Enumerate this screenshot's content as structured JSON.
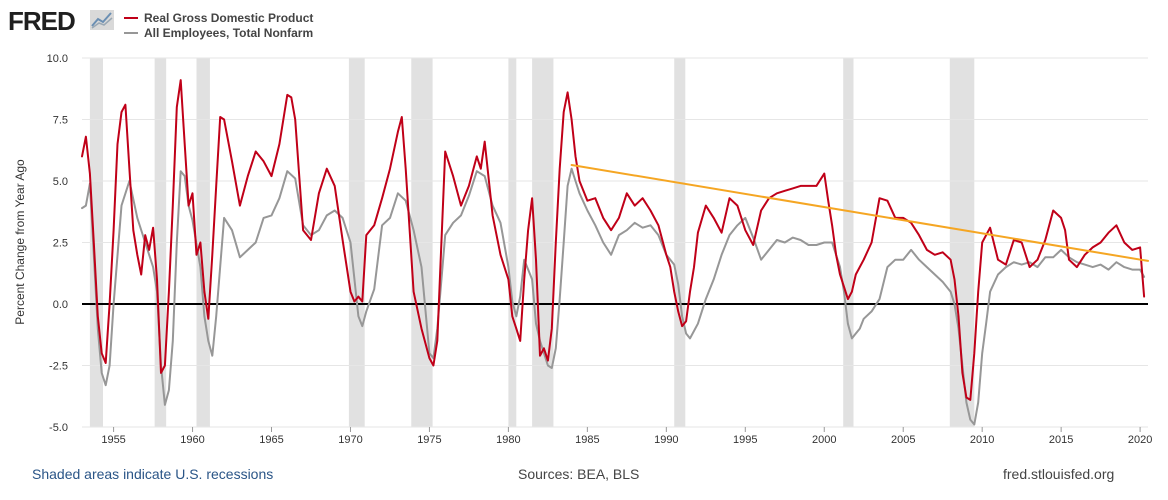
{
  "header": {
    "logo_text": "FRED",
    "logo_icon": "line-chart-icon"
  },
  "footer": {
    "recession_note": "Shaded areas indicate U.S. recessions",
    "sources": "Sources: BEA, BLS",
    "site": "fred.stlouisfed.org"
  },
  "colors": {
    "gdp": "#c00018",
    "employees": "#979797",
    "trend": "#f5a623",
    "recession": "#e1e1e1",
    "zero_line": "#000000"
  },
  "chart_data": {
    "type": "line",
    "title": "",
    "xlabel": "",
    "ylabel": "Percent Change from Year Ago",
    "xlim": [
      1953,
      2020.5
    ],
    "ylim": [
      -5.0,
      10.0
    ],
    "y_ticks": [
      "-5.0",
      "-2.5",
      "0.0",
      "2.5",
      "5.0",
      "7.5",
      "10.0"
    ],
    "x_ticks": [
      "1955",
      "1960",
      "1965",
      "1970",
      "1975",
      "1980",
      "1985",
      "1990",
      "1995",
      "2000",
      "2005",
      "2010",
      "2015",
      "2020"
    ],
    "grid": "horizontal",
    "legend_position": "top-left",
    "recessions": [
      [
        1953.5,
        1954.33
      ],
      [
        1957.6,
        1958.33
      ],
      [
        1960.25,
        1961.1
      ],
      [
        1969.9,
        1970.9
      ],
      [
        1973.85,
        1975.2
      ],
      [
        1980.0,
        1980.5
      ],
      [
        1981.5,
        1982.85
      ],
      [
        1990.5,
        1991.2
      ],
      [
        2001.2,
        2001.85
      ],
      [
        2007.95,
        2009.5
      ]
    ],
    "series": [
      {
        "name": "Real Gross Domestic Product",
        "x": [
          1953.0,
          1953.25,
          1953.5,
          1953.75,
          1954.0,
          1954.25,
          1954.5,
          1954.75,
          1955.0,
          1955.25,
          1955.5,
          1955.75,
          1956.0,
          1956.25,
          1956.5,
          1956.75,
          1957.0,
          1957.25,
          1957.5,
          1957.75,
          1958.0,
          1958.25,
          1958.5,
          1958.75,
          1959.0,
          1959.25,
          1959.5,
          1959.75,
          1960.0,
          1960.25,
          1960.5,
          1960.75,
          1961.0,
          1961.25,
          1961.5,
          1961.75,
          1962.0,
          1962.5,
          1963.0,
          1963.5,
          1964.0,
          1964.5,
          1965.0,
          1965.5,
          1966.0,
          1966.25,
          1966.5,
          1967.0,
          1967.5,
          1968.0,
          1968.5,
          1969.0,
          1969.5,
          1970.0,
          1970.25,
          1970.5,
          1970.75,
          1971.0,
          1971.5,
          1972.0,
          1972.5,
          1973.0,
          1973.25,
          1973.5,
          1974.0,
          1974.5,
          1975.0,
          1975.25,
          1975.5,
          1976.0,
          1976.5,
          1977.0,
          1977.5,
          1978.0,
          1978.25,
          1978.5,
          1979.0,
          1979.5,
          1980.0,
          1980.25,
          1980.5,
          1980.75,
          1981.0,
          1981.25,
          1981.5,
          1981.75,
          1982.0,
          1982.25,
          1982.5,
          1982.75,
          1983.0,
          1983.25,
          1983.5,
          1983.75,
          1984.0,
          1984.25,
          1984.5,
          1985.0,
          1985.5,
          1986.0,
          1986.5,
          1987.0,
          1987.5,
          1988.0,
          1988.5,
          1989.0,
          1989.5,
          1990.0,
          1990.25,
          1990.5,
          1990.75,
          1991.0,
          1991.25,
          1991.5,
          1991.75,
          1992.0,
          1992.5,
          1993.0,
          1993.5,
          1994.0,
          1994.5,
          1995.0,
          1995.5,
          1996.0,
          1996.5,
          1997.0,
          1997.5,
          1998.0,
          1998.5,
          1999.0,
          1999.5,
          2000.0,
          2000.25,
          2000.5,
          2000.75,
          2001.0,
          2001.25,
          2001.5,
          2001.75,
          2002.0,
          2002.5,
          2003.0,
          2003.5,
          2004.0,
          2004.5,
          2005.0,
          2005.5,
          2006.0,
          2006.5,
          2007.0,
          2007.5,
          2008.0,
          2008.25,
          2008.5,
          2008.75,
          2009.0,
          2009.25,
          2009.5,
          2009.75,
          2010.0,
          2010.5,
          2011.0,
          2011.5,
          2012.0,
          2012.5,
          2013.0,
          2013.5,
          2014.0,
          2014.5,
          2015.0,
          2015.25,
          2015.5,
          2016.0,
          2016.5,
          2017.0,
          2017.5,
          2018.0,
          2018.5,
          2019.0,
          2019.5,
          2020.0,
          2020.25
        ],
        "values": [
          6.0,
          6.8,
          5.3,
          2.5,
          -0.5,
          -2.0,
          -2.4,
          0.0,
          3.0,
          6.5,
          7.8,
          8.1,
          5.5,
          3.0,
          2.0,
          1.2,
          2.8,
          2.2,
          3.1,
          1.0,
          -2.8,
          -2.5,
          0.5,
          4.0,
          8.0,
          9.1,
          6.5,
          4.0,
          4.5,
          2.0,
          2.5,
          0.5,
          -0.6,
          2.0,
          4.8,
          7.6,
          7.5,
          5.8,
          4.0,
          5.2,
          6.2,
          5.8,
          5.2,
          6.5,
          8.5,
          8.4,
          7.5,
          3.0,
          2.6,
          4.5,
          5.5,
          4.8,
          2.6,
          0.5,
          0.1,
          0.3,
          0.1,
          2.8,
          3.2,
          4.3,
          5.5,
          7.0,
          7.6,
          5.5,
          0.5,
          -1.0,
          -2.2,
          -2.5,
          -1.5,
          6.2,
          5.2,
          4.0,
          4.8,
          6.0,
          5.5,
          6.6,
          3.6,
          2.0,
          1.0,
          -0.5,
          -1.0,
          -1.5,
          1.0,
          3.0,
          4.3,
          1.8,
          -2.1,
          -1.8,
          -2.3,
          -1.0,
          2.5,
          5.5,
          7.8,
          8.6,
          7.5,
          6.0,
          5.0,
          4.2,
          4.3,
          3.5,
          3.0,
          3.5,
          4.5,
          4.0,
          4.3,
          3.8,
          3.2,
          2.0,
          1.5,
          0.5,
          -0.3,
          -0.9,
          -0.7,
          0.5,
          1.5,
          2.9,
          4.0,
          3.5,
          2.9,
          4.3,
          4.0,
          3.0,
          2.4,
          3.8,
          4.3,
          4.5,
          4.6,
          4.7,
          4.8,
          4.8,
          4.8,
          5.3,
          4.2,
          3.2,
          2.0,
          1.2,
          0.7,
          0.2,
          0.5,
          1.2,
          1.8,
          2.5,
          4.3,
          4.2,
          3.5,
          3.5,
          3.3,
          2.8,
          2.2,
          2.0,
          2.1,
          1.8,
          1.0,
          -0.5,
          -2.8,
          -3.8,
          -3.9,
          -2.0,
          0.5,
          2.5,
          3.1,
          1.8,
          1.6,
          2.6,
          2.5,
          1.5,
          1.8,
          2.6,
          3.8,
          3.5,
          3.0,
          1.8,
          1.5,
          2.0,
          2.3,
          2.5,
          2.9,
          3.2,
          2.5,
          2.2,
          2.3,
          0.3
        ]
      },
      {
        "name": "All Employees, Total Nonfarm",
        "x": [
          1953.0,
          1953.25,
          1953.5,
          1953.75,
          1954.0,
          1954.25,
          1954.5,
          1954.75,
          1955.0,
          1955.5,
          1956.0,
          1956.5,
          1957.0,
          1957.5,
          1957.75,
          1958.0,
          1958.25,
          1958.5,
          1958.75,
          1959.0,
          1959.25,
          1959.5,
          1959.75,
          1960.0,
          1960.5,
          1960.75,
          1961.0,
          1961.25,
          1961.5,
          1962.0,
          1962.5,
          1963.0,
          1963.5,
          1964.0,
          1964.5,
          1965.0,
          1965.5,
          1966.0,
          1966.5,
          1967.0,
          1967.5,
          1968.0,
          1968.5,
          1969.0,
          1969.5,
          1970.0,
          1970.5,
          1970.75,
          1971.0,
          1971.5,
          1972.0,
          1972.5,
          1973.0,
          1973.5,
          1974.0,
          1974.5,
          1975.0,
          1975.25,
          1975.5,
          1976.0,
          1976.5,
          1977.0,
          1977.5,
          1978.0,
          1978.5,
          1979.0,
          1979.5,
          1980.0,
          1980.25,
          1980.5,
          1980.75,
          1981.0,
          1981.5,
          1981.75,
          1982.0,
          1982.5,
          1982.75,
          1983.0,
          1983.25,
          1983.5,
          1983.75,
          1984.0,
          1984.25,
          1984.5,
          1985.0,
          1985.5,
          1986.0,
          1986.5,
          1987.0,
          1987.5,
          1988.0,
          1988.5,
          1989.0,
          1989.5,
          1990.0,
          1990.5,
          1990.75,
          1991.0,
          1991.25,
          1991.5,
          1992.0,
          1992.5,
          1993.0,
          1993.5,
          1994.0,
          1994.5,
          1995.0,
          1995.5,
          1996.0,
          1996.5,
          1997.0,
          1997.5,
          1998.0,
          1998.5,
          1999.0,
          1999.5,
          2000.0,
          2000.5,
          2001.0,
          2001.25,
          2001.5,
          2001.75,
          2002.0,
          2002.25,
          2002.5,
          2003.0,
          2003.5,
          2004.0,
          2004.5,
          2005.0,
          2005.5,
          2006.0,
          2006.5,
          2007.0,
          2007.5,
          2008.0,
          2008.25,
          2008.5,
          2008.75,
          2009.0,
          2009.25,
          2009.5,
          2009.75,
          2010.0,
          2010.25,
          2010.5,
          2011.0,
          2011.5,
          2012.0,
          2012.5,
          2013.0,
          2013.5,
          2014.0,
          2014.5,
          2015.0,
          2015.5,
          2016.0,
          2016.5,
          2017.0,
          2017.5,
          2018.0,
          2018.5,
          2019.0,
          2019.5,
          2020.0,
          2020.25
        ],
        "values": [
          3.9,
          4.0,
          4.9,
          2.0,
          -1.0,
          -2.8,
          -3.3,
          -2.5,
          0.0,
          4.0,
          5.0,
          3.5,
          2.5,
          1.5,
          0.5,
          -2.5,
          -4.1,
          -3.5,
          -1.5,
          2.5,
          5.4,
          5.2,
          4.0,
          3.4,
          1.5,
          -0.5,
          -1.5,
          -2.1,
          -0.5,
          3.5,
          3.0,
          1.9,
          2.2,
          2.5,
          3.5,
          3.6,
          4.3,
          5.4,
          5.1,
          3.2,
          2.8,
          3.0,
          3.6,
          3.8,
          3.5,
          2.5,
          -0.5,
          -0.9,
          -0.3,
          0.6,
          3.2,
          3.5,
          4.5,
          4.2,
          3.0,
          1.5,
          -2.0,
          -2.2,
          -1.0,
          2.8,
          3.3,
          3.6,
          4.4,
          5.4,
          5.2,
          4.0,
          3.3,
          1.5,
          0.1,
          -0.5,
          0.3,
          1.8,
          1.0,
          -0.8,
          -1.5,
          -2.5,
          -2.6,
          -1.8,
          0.2,
          2.5,
          4.8,
          5.5,
          5.0,
          4.5,
          3.8,
          3.2,
          2.5,
          2.0,
          2.8,
          3.0,
          3.3,
          3.1,
          3.2,
          2.8,
          2.0,
          1.6,
          0.8,
          -0.5,
          -1.2,
          -1.4,
          -0.8,
          0.2,
          1.0,
          2.0,
          2.8,
          3.2,
          3.5,
          2.7,
          1.8,
          2.2,
          2.6,
          2.5,
          2.7,
          2.6,
          2.4,
          2.4,
          2.5,
          2.5,
          1.5,
          0.5,
          -0.8,
          -1.4,
          -1.2,
          -1.0,
          -0.6,
          -0.3,
          0.2,
          1.5,
          1.8,
          1.8,
          2.2,
          1.8,
          1.5,
          1.2,
          0.9,
          0.5,
          0.0,
          -1.0,
          -2.5,
          -4.0,
          -4.7,
          -4.9,
          -4.0,
          -2.0,
          -0.8,
          0.5,
          1.2,
          1.5,
          1.7,
          1.6,
          1.7,
          1.5,
          1.9,
          1.9,
          2.2,
          1.9,
          1.7,
          1.6,
          1.5,
          1.6,
          1.4,
          1.7,
          1.5,
          1.4,
          1.4,
          1.1
        ]
      },
      {
        "name": "",
        "x": [
          1984.0,
          2020.5
        ],
        "values": [
          5.65,
          1.75
        ]
      }
    ]
  }
}
